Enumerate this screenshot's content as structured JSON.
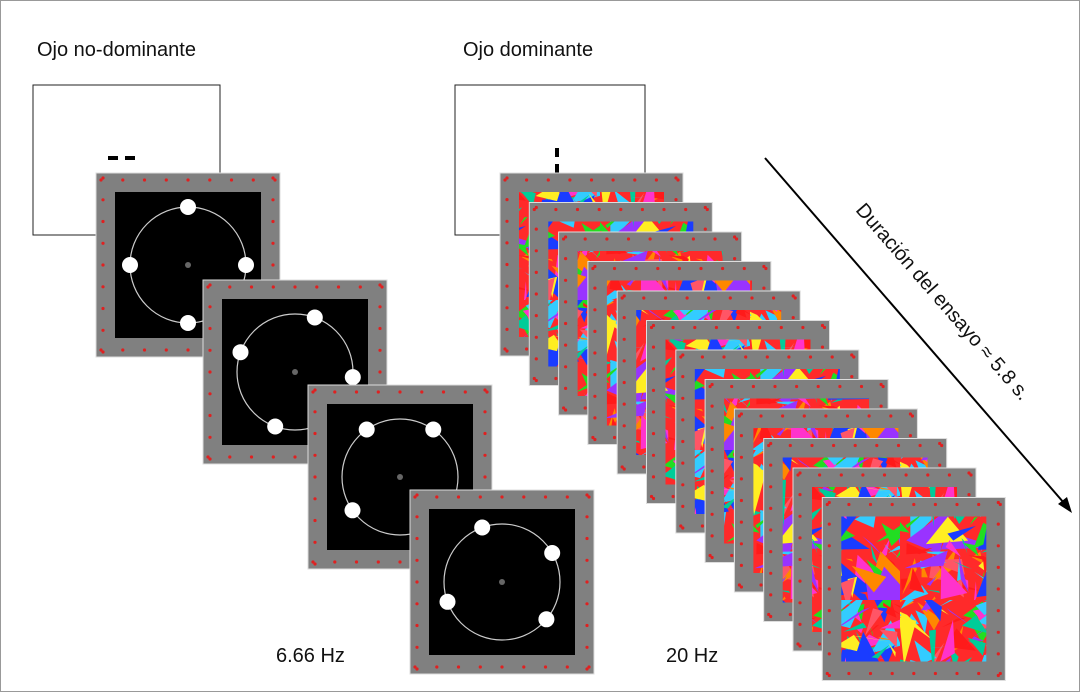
{
  "left_label": "Ojo no-dominante",
  "right_label": "Ojo dominante",
  "arrow_label": "Duración del ensayo ≈ 5.8 s.",
  "left_rate": "6.66 Hz",
  "right_rate": "20 Hz"
}
